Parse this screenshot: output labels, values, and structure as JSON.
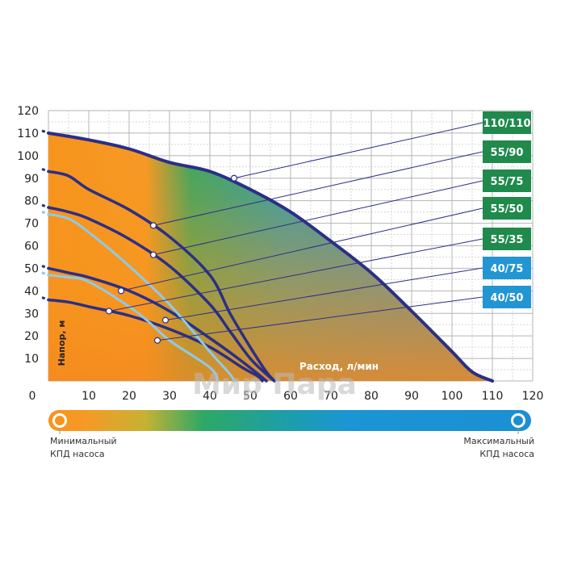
{
  "chart_data": {
    "type": "line",
    "xlabel": "Расход, л/мин",
    "ylabel": "Напор, м",
    "xlim": [
      0,
      120
    ],
    "ylim": [
      0,
      120
    ],
    "x_ticks": [
      0,
      10,
      20,
      30,
      40,
      50,
      60,
      70,
      80,
      90,
      100,
      110,
      120
    ],
    "y_ticks": [
      10,
      20,
      30,
      40,
      50,
      60,
      70,
      80,
      90,
      100,
      110,
      120
    ],
    "grid": true,
    "efficiency_scale": {
      "min_label": [
        "Минимальный",
        "КПД насоса"
      ],
      "max_label": [
        "Максимальный",
        "КПД насоса"
      ],
      "colors": [
        "#f7941d",
        "#f5a623",
        "#9bbf3f",
        "#23a46a",
        "#1f9bc9",
        "#1b8fd2"
      ]
    },
    "series": [
      {
        "name": "110/110",
        "color": "#2b2f86",
        "badge_color": "#1f8a4c",
        "points": [
          [
            0,
            110
          ],
          [
            10,
            107
          ],
          [
            20,
            103
          ],
          [
            30,
            97
          ],
          [
            40,
            93
          ],
          [
            50,
            85
          ],
          [
            60,
            75
          ],
          [
            70,
            62
          ],
          [
            80,
            48
          ],
          [
            90,
            31
          ],
          [
            100,
            13
          ],
          [
            105,
            4
          ],
          [
            110,
            0
          ]
        ]
      },
      {
        "name": "55/90",
        "color": "#2b2f86",
        "badge_color": "#1f8a4c",
        "points": [
          [
            0,
            93
          ],
          [
            5,
            91
          ],
          [
            10,
            85
          ],
          [
            20,
            76
          ],
          [
            30,
            64
          ],
          [
            40,
            47
          ],
          [
            45,
            30
          ],
          [
            50,
            15
          ],
          [
            54,
            4
          ],
          [
            56,
            0
          ]
        ]
      },
      {
        "name": "55/75",
        "color": "#2b2f86",
        "badge_color": "#1f8a4c",
        "points": [
          [
            0,
            77
          ],
          [
            5,
            75
          ],
          [
            10,
            72
          ],
          [
            20,
            63
          ],
          [
            30,
            51
          ],
          [
            40,
            34
          ],
          [
            45,
            22
          ],
          [
            50,
            10
          ],
          [
            54,
            3
          ],
          [
            56,
            0
          ]
        ]
      },
      {
        "name": "55/50",
        "color": "#2b2f86",
        "badge_color": "#1f8a4c",
        "points": [
          [
            0,
            50
          ],
          [
            5,
            48
          ],
          [
            10,
            46
          ],
          [
            20,
            40
          ],
          [
            30,
            31
          ],
          [
            40,
            19
          ],
          [
            47,
            10
          ],
          [
            52,
            3
          ],
          [
            54,
            0
          ]
        ]
      },
      {
        "name": "55/35",
        "color": "#2b2f86",
        "badge_color": "#1f8a4c",
        "points": [
          [
            0,
            36
          ],
          [
            5,
            35
          ],
          [
            10,
            33
          ],
          [
            20,
            29
          ],
          [
            30,
            23
          ],
          [
            40,
            15
          ],
          [
            48,
            6
          ],
          [
            52,
            2
          ],
          [
            53,
            0
          ]
        ]
      },
      {
        "name": "40/75",
        "color": "#8fc9e8",
        "badge_color": "#2196d3",
        "points": [
          [
            0,
            74
          ],
          [
            5,
            72
          ],
          [
            10,
            66
          ],
          [
            20,
            51
          ],
          [
            30,
            34
          ],
          [
            40,
            13
          ],
          [
            45,
            3
          ],
          [
            46,
            0
          ]
        ]
      },
      {
        "name": "40/50",
        "color": "#8fc9e8",
        "badge_color": "#2196d3",
        "points": [
          [
            0,
            47
          ],
          [
            5,
            46
          ],
          [
            10,
            44
          ],
          [
            20,
            33
          ],
          [
            25,
            26
          ],
          [
            30,
            18
          ],
          [
            40,
            6
          ],
          [
            42,
            0
          ]
        ]
      }
    ],
    "markers": [
      {
        "series": "110/110",
        "x": 46,
        "y": 90
      },
      {
        "series": "55/90",
        "x": 26,
        "y": 69
      },
      {
        "series": "55/75",
        "x": 26,
        "y": 56
      },
      {
        "series": "55/50",
        "x": 18,
        "y": 40
      },
      {
        "series": "55/35",
        "x": 15,
        "y": 31
      },
      {
        "series": "40/75",
        "x": 29,
        "y": 27
      },
      {
        "series": "40/50",
        "x": 27,
        "y": 18
      }
    ]
  },
  "watermark": "Мир Пара"
}
